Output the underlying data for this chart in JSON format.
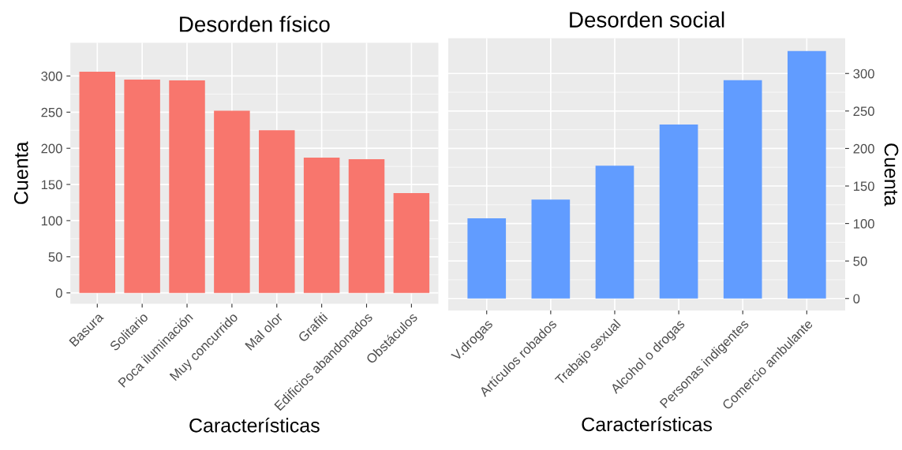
{
  "chart_data": [
    {
      "type": "bar",
      "title": "Desorden físico",
      "xlabel": "Características",
      "ylabel": "Cuenta",
      "categories": [
        "Basura",
        "Solitario",
        "Poca iluminación",
        "Muy concurrido",
        "Mal olor",
        "Grafiti",
        "Edificios abandonados",
        "Obstáculos"
      ],
      "values": [
        306,
        295,
        294,
        252,
        225,
        187,
        185,
        138
      ],
      "color": "#f8766d",
      "ylim": [
        -15,
        346
      ],
      "yticks": [
        0,
        50,
        100,
        150,
        200,
        250,
        300
      ],
      "grid": true
    },
    {
      "type": "bar",
      "title": "Desorden social",
      "xlabel": "Características",
      "ylabel": "Cuenta",
      "categories": [
        "V.drogas",
        "Artículos robados",
        "Trabajo sexual",
        "Alcohol o drogas",
        "Personas indigentes",
        "Comercio ambulante"
      ],
      "values": [
        107,
        132,
        177,
        232,
        291,
        330
      ],
      "color": "#619cff",
      "ylim": [
        -16,
        347
      ],
      "yticks": [
        0,
        50,
        100,
        150,
        200,
        250,
        300
      ],
      "grid": true
    }
  ]
}
